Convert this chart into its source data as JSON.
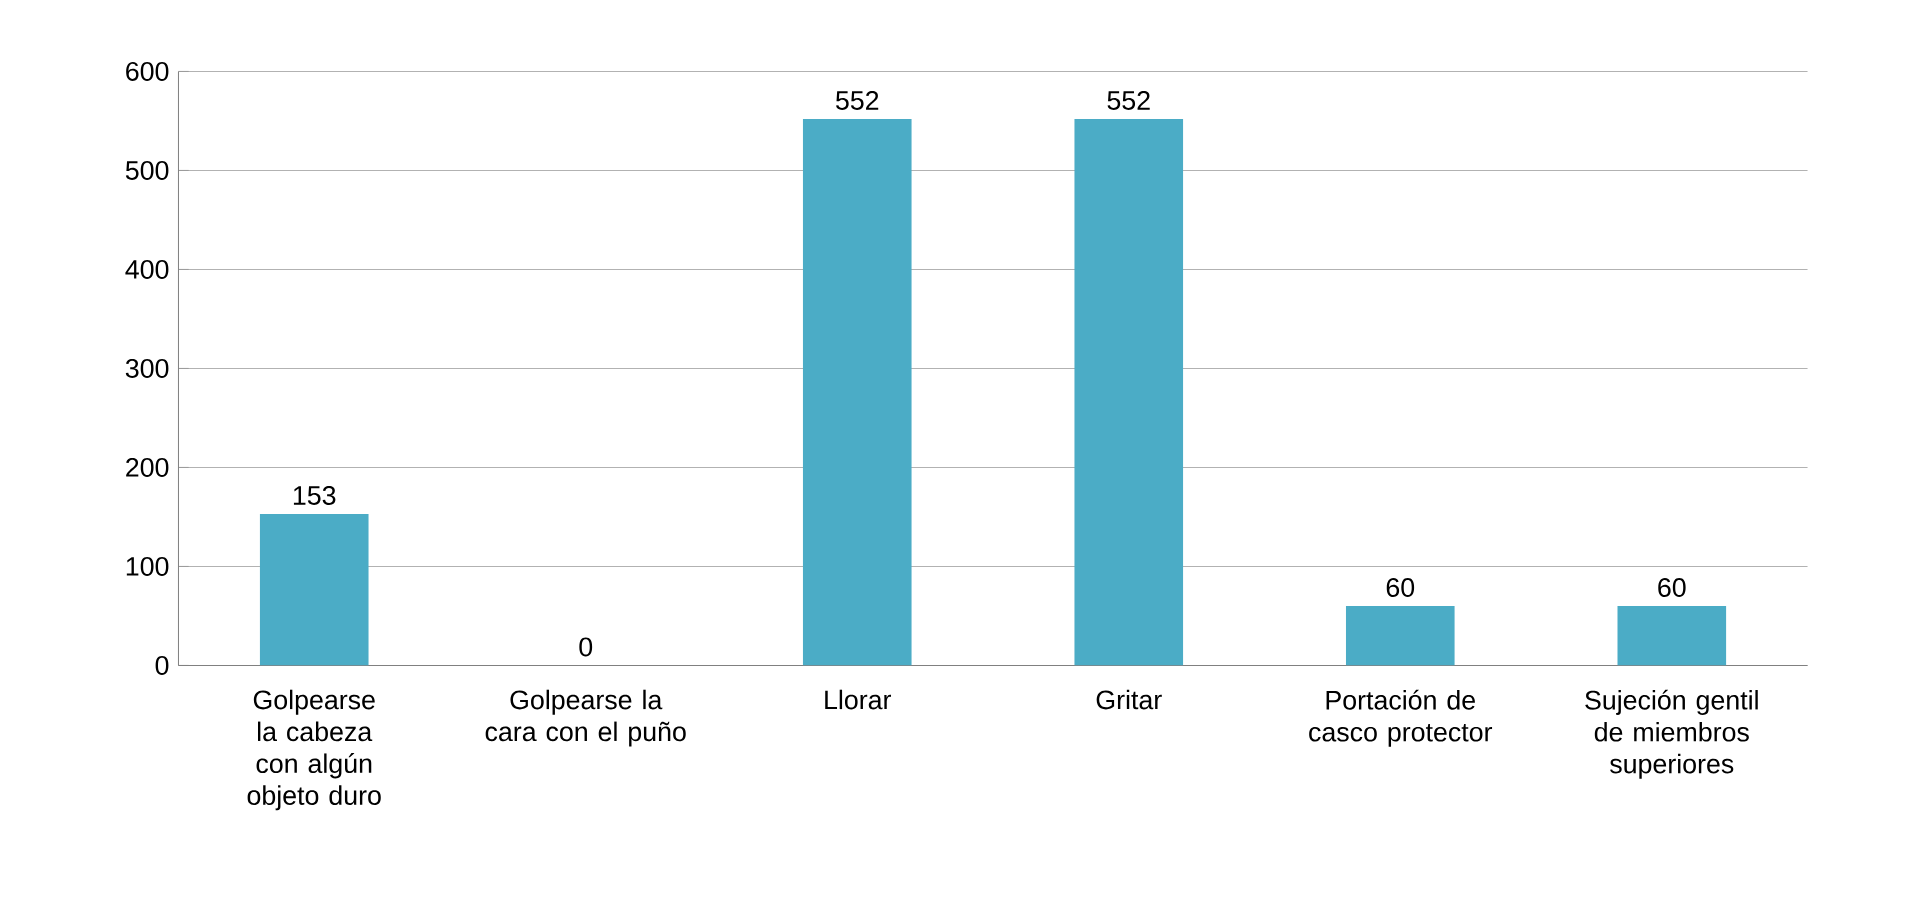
{
  "chart_data": {
    "type": "bar",
    "categories": [
      "Golpearse la cabeza con algún objeto duro",
      "Golpearse la cara con el puño",
      "Llorar",
      "Gritar",
      "Portación de casco protector",
      "Sujeción gentil de miembros superiores"
    ],
    "values": [
      153,
      0,
      552,
      552,
      60,
      60
    ],
    "color": "#4bacc6",
    "ylim": [
      0,
      600
    ],
    "yticks": [
      0,
      100,
      200,
      300,
      400,
      500,
      600
    ],
    "grid": "y",
    "data_labels": true
  }
}
